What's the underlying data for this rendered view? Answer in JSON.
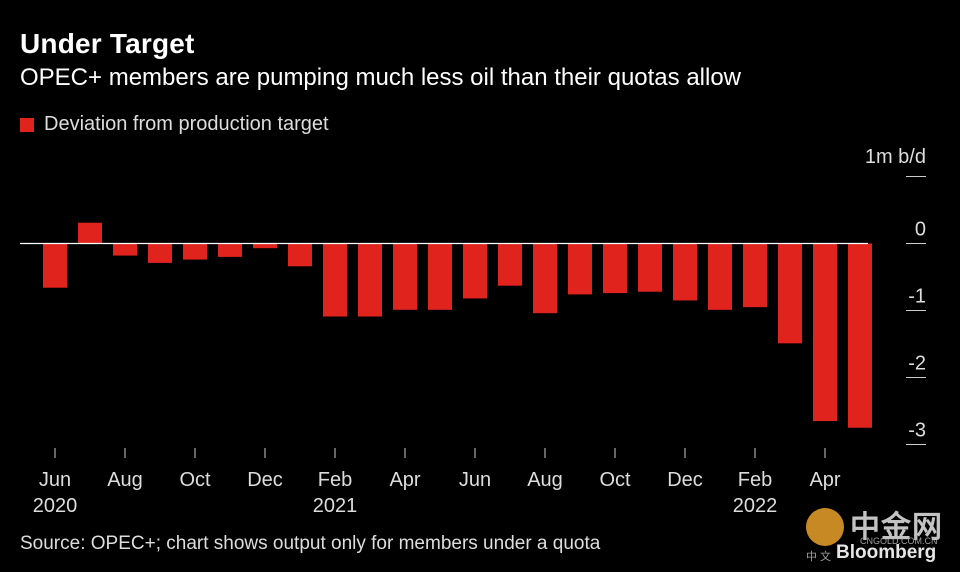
{
  "header": {
    "title": "Under Target",
    "subtitle": "OPEC+ members are pumping much less oil than their quotas allow"
  },
  "legend": {
    "label": "Deviation from production target"
  },
  "footer": {
    "source": "Source: OPEC+; chart shows output only for members under a quota"
  },
  "watermark": {
    "chinese": "中金网",
    "site": "CNGOLD.COM.CN",
    "small": "中 文",
    "brand": "Bloomberg"
  },
  "chart_data": {
    "type": "bar",
    "title": "Under Target",
    "subtitle": "OPEC+ members are pumping much less oil than their quotas allow",
    "ylabel": "1m b/d",
    "ylim": [
      -3.2,
      1
    ],
    "yticks": [
      1,
      0,
      -1,
      -2,
      -3
    ],
    "ytick_labels": [
      "",
      "0",
      "-1",
      "-2",
      "-3"
    ],
    "bar_color": "#e0231d",
    "categories": [
      "Jun 2020",
      "Jul 2020",
      "Aug 2020",
      "Sep 2020",
      "Oct 2020",
      "Nov 2020",
      "Dec 2020",
      "Jan 2021",
      "Feb 2021",
      "Mar 2021",
      "Apr 2021",
      "May 2021",
      "Jun 2021",
      "Jul 2021",
      "Aug 2021",
      "Sep 2021",
      "Oct 2021",
      "Nov 2021",
      "Dec 2021",
      "Jan 2022",
      "Feb 2022",
      "Mar 2022",
      "Apr 2022",
      "May 2022"
    ],
    "values": [
      -0.66,
      0.31,
      -0.18,
      -0.29,
      -0.24,
      -0.2,
      -0.07,
      -0.34,
      -1.09,
      -1.09,
      -0.99,
      -0.99,
      -0.82,
      -0.63,
      -1.04,
      -0.76,
      -0.74,
      -0.72,
      -0.85,
      -0.99,
      -0.95,
      -1.49,
      -2.65,
      -2.75
    ],
    "xtick_labels": [
      {
        "index": 0,
        "month": "Jun",
        "year": "2020"
      },
      {
        "index": 2,
        "month": "Aug",
        "year": ""
      },
      {
        "index": 4,
        "month": "Oct",
        "year": ""
      },
      {
        "index": 6,
        "month": "Dec",
        "year": ""
      },
      {
        "index": 8,
        "month": "Feb",
        "year": "2021"
      },
      {
        "index": 10,
        "month": "Apr",
        "year": ""
      },
      {
        "index": 12,
        "month": "Jun",
        "year": ""
      },
      {
        "index": 14,
        "month": "Aug",
        "year": ""
      },
      {
        "index": 16,
        "month": "Oct",
        "year": ""
      },
      {
        "index": 18,
        "month": "Dec",
        "year": ""
      },
      {
        "index": 20,
        "month": "Feb",
        "year": "2022"
      },
      {
        "index": 22,
        "month": "Apr",
        "year": ""
      }
    ],
    "legend": "Deviation from production target",
    "source": "Source: OPEC+; chart shows output only for members under a quota"
  }
}
